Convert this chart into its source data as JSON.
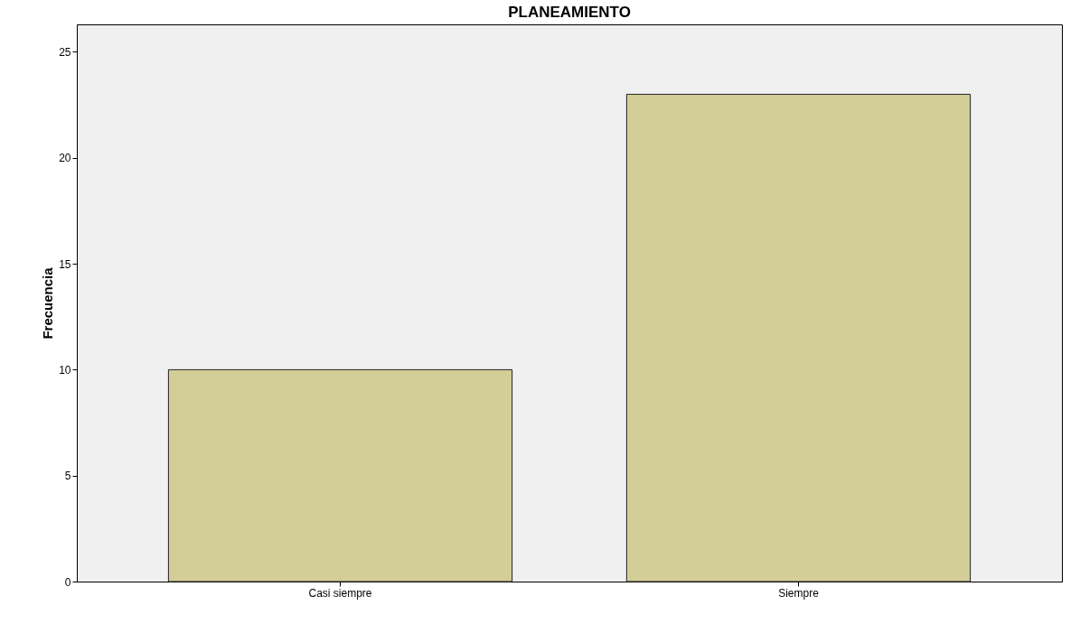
{
  "chart_data": {
    "type": "bar",
    "title": "PLANEAMIENTO",
    "ylabel": "Frecuencia",
    "categories": [
      "Casi siempre",
      "Siempre"
    ],
    "values": [
      10,
      23
    ],
    "color": "#d3ce97",
    "ylim": [
      0,
      26.3
    ],
    "yticks": [
      0,
      5,
      10,
      15,
      20,
      25
    ],
    "grid": false
  }
}
